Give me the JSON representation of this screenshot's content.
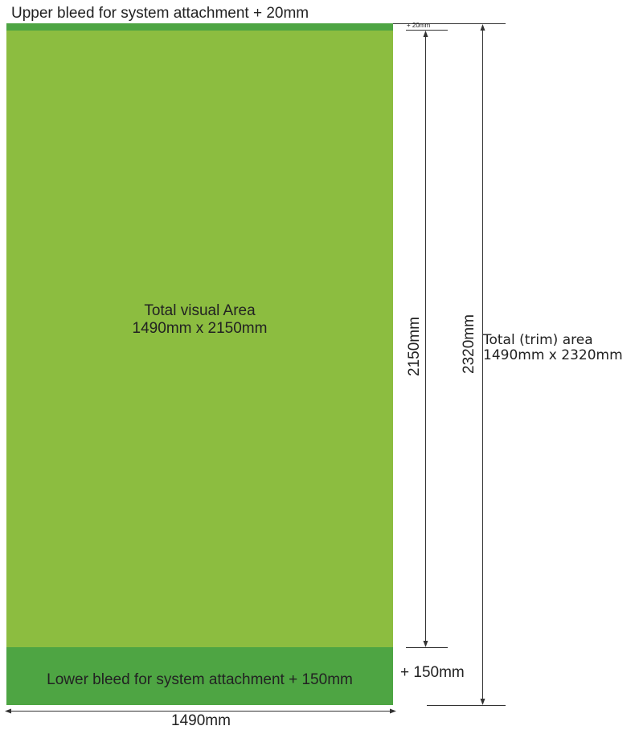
{
  "colors": {
    "visual_area": "#8cbd40",
    "bleed": "#4ea543",
    "text": "#222222",
    "dimension_line": "#333333"
  },
  "labels": {
    "upper_bleed": "Upper bleed for system attachment + 20mm",
    "visual_area_line1": "Total visual Area",
    "visual_area_line2": "1490mm x 2150mm",
    "lower_bleed": "Lower bleed for system attachment + 150mm",
    "top_offset": "+ 20mm",
    "visual_height": "2150mm",
    "total_height": "2320mm",
    "trim_area_line1": "Total (trim) area",
    "trim_area_line2": "1490mm x 2320mm",
    "lower_offset": "+ 150mm",
    "width": "1490mm"
  }
}
